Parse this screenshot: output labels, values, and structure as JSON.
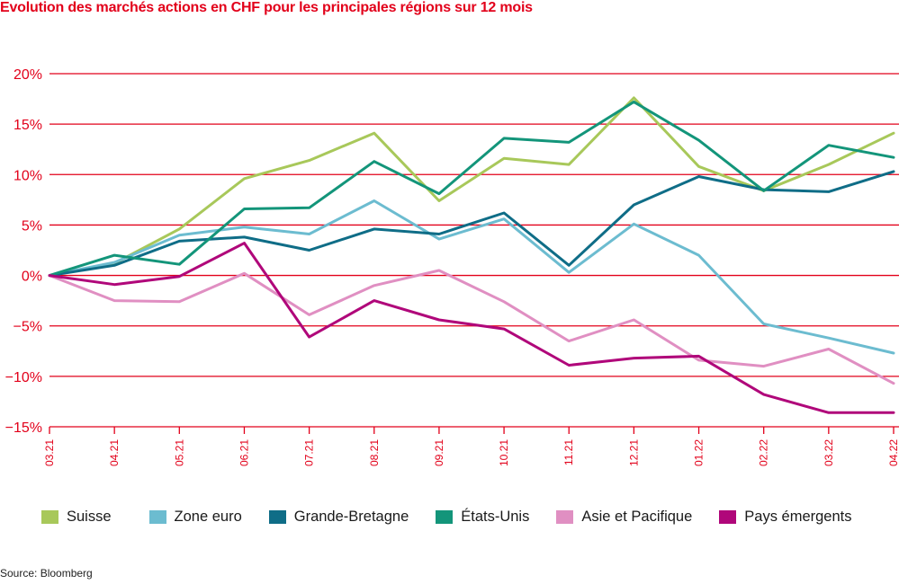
{
  "title": "Evolution des marchés actions en CHF pour les principales régions sur 12 mois",
  "source": "Source: Bloomberg",
  "chart_data": {
    "type": "line",
    "title": "Evolution des marchés actions en CHF pour les principales régions sur 12 mois",
    "categories": [
      "03.21",
      "04.21",
      "05.21",
      "06.21",
      "07.21",
      "08.21",
      "09.21",
      "10.21",
      "11.21",
      "12.21",
      "01.22",
      "02.22",
      "03.22",
      "04.22"
    ],
    "y_tick_labels": [
      "20%",
      "15%",
      "10%",
      "5%",
      "0%",
      "−5%",
      "−10%",
      "−15%"
    ],
    "y_ticks": [
      20,
      15,
      10,
      5,
      0,
      -5,
      -10,
      -15
    ],
    "ylim": [
      -15,
      20
    ],
    "grid": true,
    "legend_position": "bottom",
    "series": [
      {
        "name": "Suisse",
        "color": "#a8c85a",
        "values": [
          0,
          1.2,
          4.6,
          9.6,
          11.4,
          14.1,
          7.4,
          11.6,
          11.0,
          17.6,
          10.8,
          8.4,
          11.0,
          14.1
        ]
      },
      {
        "name": "Zone euro",
        "color": "#6cbcd0",
        "values": [
          0,
          1.3,
          4.0,
          4.8,
          4.1,
          7.4,
          3.6,
          5.6,
          0.3,
          5.1,
          2.0,
          -4.8,
          -6.2,
          -7.7
        ]
      },
      {
        "name": "Grande-Bretagne",
        "color": "#0f6d87",
        "values": [
          0,
          1.0,
          3.4,
          3.8,
          2.5,
          4.6,
          4.1,
          6.2,
          1.0,
          7.0,
          9.8,
          8.5,
          8.3,
          10.3
        ]
      },
      {
        "name": "États-Unis",
        "color": "#13957a",
        "values": [
          0,
          2.0,
          1.1,
          6.6,
          6.7,
          11.3,
          8.1,
          13.6,
          13.2,
          17.2,
          13.4,
          8.4,
          12.9,
          11.7
        ]
      },
      {
        "name": "Asie et Pacifique",
        "color": "#e08fc2",
        "values": [
          0,
          -2.5,
          -2.6,
          0.2,
          -3.9,
          -1.0,
          0.5,
          -2.6,
          -6.5,
          -4.4,
          -8.4,
          -9.0,
          -7.3,
          -10.7
        ]
      },
      {
        "name": "Pays émergents",
        "color": "#b0077a",
        "values": [
          0,
          -0.9,
          -0.1,
          3.2,
          -6.1,
          -2.5,
          -4.4,
          -5.3,
          -8.9,
          -8.2,
          -8.0,
          -11.8,
          -13.6,
          -13.6
        ]
      }
    ]
  }
}
